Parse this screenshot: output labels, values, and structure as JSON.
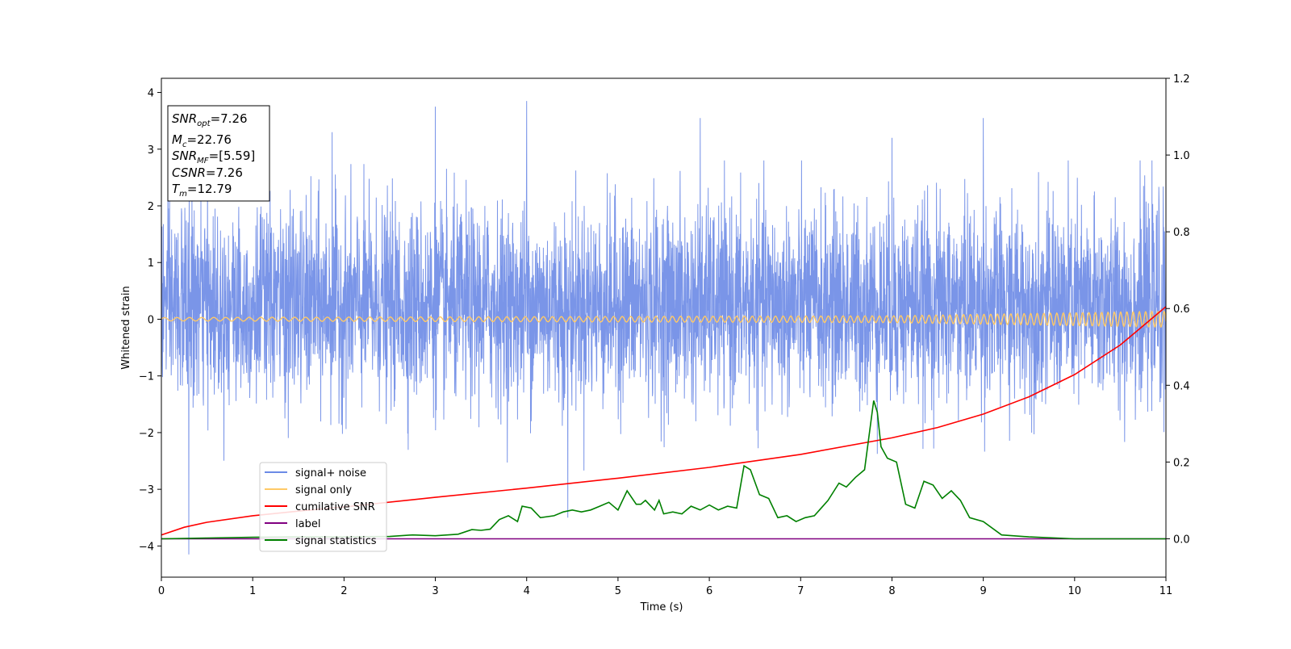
{
  "chart_data": {
    "type": "line",
    "xlabel": "Time (s)",
    "ylabel": "Whitened strain",
    "xlim": [
      0,
      11
    ],
    "ylim": [
      -4.55,
      4.25
    ],
    "y2lim": [
      -0.1,
      1.2
    ],
    "x_ticks": [
      0,
      1,
      2,
      3,
      4,
      5,
      6,
      7,
      8,
      9,
      10,
      11
    ],
    "y_ticks": [
      -4,
      -3,
      -2,
      -1,
      0,
      1,
      2,
      3,
      4
    ],
    "y2_ticks": [
      0.0,
      0.2,
      0.4,
      0.6,
      0.8,
      1.0,
      1.2
    ],
    "x_tick_labels": [
      "0",
      "1",
      "2",
      "3",
      "4",
      "5",
      "6",
      "7",
      "8",
      "9",
      "10",
      "11"
    ],
    "y_tick_labels": [
      "−4",
      "−3",
      "−2",
      "−1",
      "0",
      "1",
      "2",
      "3",
      "4"
    ],
    "y2_tick_labels": [
      "0.0",
      "0.2",
      "0.4",
      "0.6",
      "0.8",
      "1.0",
      "1.2"
    ],
    "grid": false,
    "legend_position": "lower-left",
    "stats_box": {
      "snr_opt": {
        "name": "SNR",
        "sub": "opt",
        "value": "=7.26"
      },
      "mc": {
        "name": "M",
        "sub": "c",
        "value": "=22.76"
      },
      "snr_mf": {
        "name": "SNR",
        "sub": "MF",
        "value": "=[5.59]"
      },
      "csnr": {
        "name": "CSNR",
        "sub": "",
        "value": "=7.26"
      },
      "tm": {
        "name": "T",
        "sub": "m",
        "value": "=12.79"
      }
    },
    "series": [
      {
        "name": "signal+ noise",
        "color": "#6b8ae6",
        "axis": "left",
        "description_points": {
          "envelope_typical": [
            -2.0,
            2.3
          ],
          "peaks": [
            {
              "x": 0.3,
              "y": -4.15
            },
            {
              "x": 1.87,
              "y": 3.3
            },
            {
              "x": 3.0,
              "y": 3.75
            },
            {
              "x": 4.0,
              "y": 3.85
            },
            {
              "x": 5.9,
              "y": 3.55
            },
            {
              "x": 9.0,
              "y": 3.55
            },
            {
              "x": 8.0,
              "y": 3.2
            },
            {
              "x": 4.45,
              "y": -3.5
            }
          ]
        }
      },
      {
        "name": "signal only",
        "color": "#ffc966",
        "axis": "left",
        "amplitude_growth": {
          "x": [
            0,
            8,
            11
          ],
          "amp": [
            0.03,
            0.06,
            0.14
          ]
        }
      },
      {
        "name": "cumilative SNR",
        "color": "#ff0000",
        "axis": "right",
        "x": [
          0,
          0.25,
          0.5,
          1,
          1.5,
          2,
          3,
          4,
          5,
          6,
          7,
          8,
          8.5,
          9,
          9.5,
          10,
          10.5,
          11
        ],
        "y": [
          0.01,
          0.03,
          0.043,
          0.06,
          0.072,
          0.083,
          0.108,
          0.132,
          0.158,
          0.186,
          0.22,
          0.263,
          0.29,
          0.325,
          0.37,
          0.428,
          0.505,
          0.605
        ]
      },
      {
        "name": "label",
        "color": "#800080",
        "axis": "right",
        "x": [
          0,
          11
        ],
        "y": [
          0,
          0
        ]
      },
      {
        "name": "signal statistics",
        "color": "#008000",
        "axis": "right",
        "x": [
          0,
          0.5,
          1,
          1.5,
          2,
          2.5,
          2.75,
          3,
          3.25,
          3.4,
          3.5,
          3.6,
          3.7,
          3.8,
          3.9,
          3.95,
          4.05,
          4.15,
          4.3,
          4.4,
          4.5,
          4.6,
          4.7,
          4.8,
          4.9,
          5.0,
          5.1,
          5.2,
          5.25,
          5.3,
          5.4,
          5.45,
          5.5,
          5.6,
          5.7,
          5.8,
          5.9,
          6.0,
          6.1,
          6.2,
          6.3,
          6.38,
          6.45,
          6.55,
          6.65,
          6.75,
          6.85,
          6.95,
          7.05,
          7.15,
          7.3,
          7.42,
          7.5,
          7.6,
          7.7,
          7.8,
          7.84,
          7.88,
          7.95,
          8.05,
          8.15,
          8.25,
          8.35,
          8.45,
          8.55,
          8.65,
          8.75,
          8.85,
          9.0,
          9.2,
          9.5,
          10,
          11
        ],
        "y": [
          0,
          0.002,
          0.004,
          0.005,
          0.005,
          0.006,
          0.01,
          0.008,
          0.012,
          0.024,
          0.022,
          0.025,
          0.05,
          0.06,
          0.045,
          0.085,
          0.08,
          0.055,
          0.06,
          0.07,
          0.075,
          0.07,
          0.075,
          0.085,
          0.095,
          0.075,
          0.125,
          0.09,
          0.09,
          0.1,
          0.075,
          0.1,
          0.065,
          0.07,
          0.065,
          0.085,
          0.075,
          0.088,
          0.075,
          0.085,
          0.08,
          0.19,
          0.18,
          0.115,
          0.105,
          0.055,
          0.06,
          0.045,
          0.055,
          0.06,
          0.1,
          0.145,
          0.135,
          0.16,
          0.18,
          0.36,
          0.33,
          0.24,
          0.21,
          0.2,
          0.09,
          0.08,
          0.15,
          0.14,
          0.105,
          0.125,
          0.1,
          0.055,
          0.045,
          0.01,
          0.005,
          0,
          0
        ]
      }
    ]
  }
}
